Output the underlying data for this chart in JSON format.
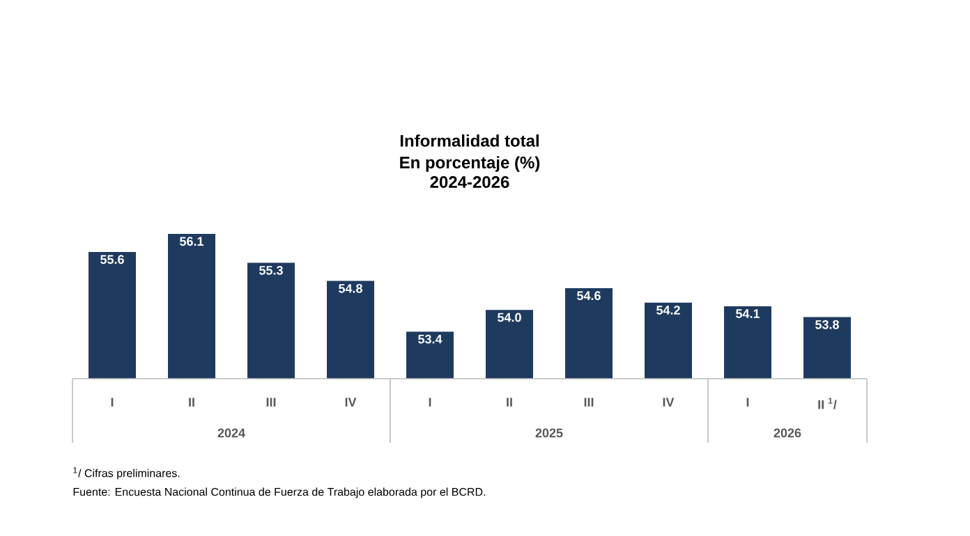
{
  "chart_data": {
    "type": "bar",
    "title": "Informalidad total",
    "subtitle": "En porcentaje (%) 2024-2026",
    "categories": [
      "I",
      "II",
      "III",
      "IV",
      "I",
      "II",
      "III",
      "IV",
      "I",
      "II $^{1}$/"
    ],
    "values": [
      55.6,
      56.1,
      55.3,
      54.8,
      53.4,
      54.0,
      54.6,
      54.2,
      54.1,
      53.8
    ],
    "value_labels": [
      "55.6",
      "56.1",
      "55.3",
      "54.8",
      "53.4",
      "54.0",
      "54.6",
      "54.2",
      "54.1",
      "53.8"
    ],
    "color": "#1f3a5f",
    "ylim": [
      52.1,
      56.1
    ],
    "annotations": [
      "2024",
      "2025",
      "2026",
      "$^{1}$/ Cifras preliminares.",
      "Fuente: Encuesta Nacional Continua de Fuerza de Trabajo elaborada por el BCRD."
    ]
  }
}
